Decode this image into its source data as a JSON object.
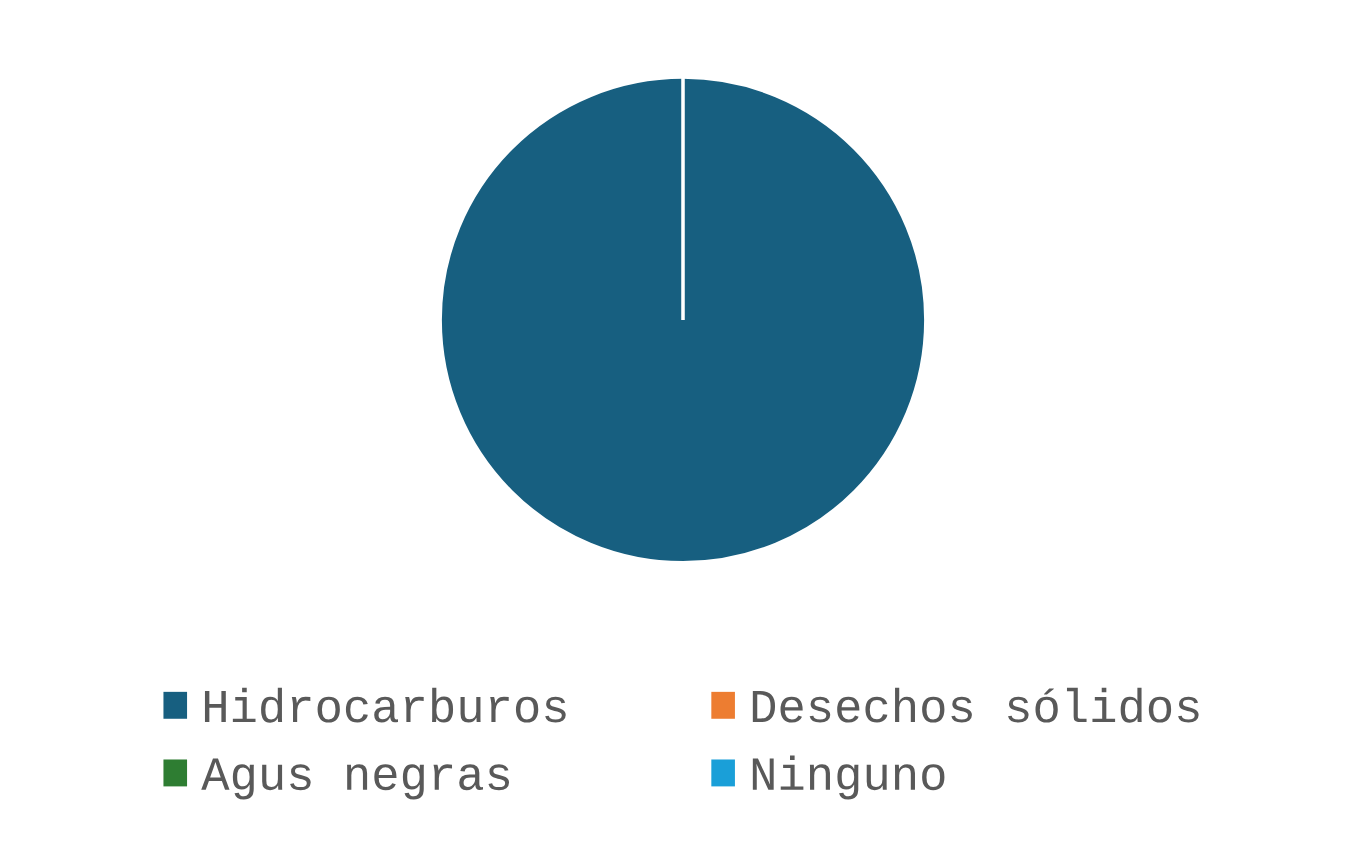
{
  "chart_data": {
    "type": "pie",
    "categories": [
      "Hidrocarburos",
      "Desechos sólidos",
      "Agus negras",
      "Ninguno"
    ],
    "values": [
      100,
      0,
      0,
      0
    ],
    "colors": [
      "#175f80",
      "#ed7d31",
      "#2e7d32",
      "#1a9fd8"
    ],
    "legend": "bottom"
  }
}
